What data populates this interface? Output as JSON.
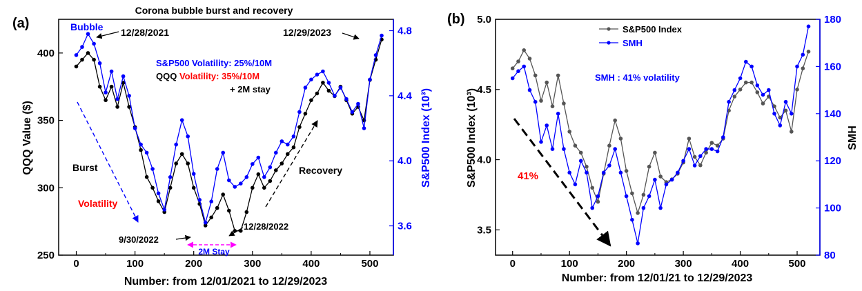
{
  "chart_data": [
    {
      "panel": "(a)",
      "type": "line",
      "title": "Corona bubble burst and recovery",
      "xlabel": "Number: from 12/01/2021 to 12/29/2023",
      "ylabel_left": "QQQ Value ($)",
      "ylabel_right": "S&P500 Index (10³)",
      "xlim": [
        -30,
        540
      ],
      "xticks": [
        "0",
        "100",
        "200",
        "300",
        "400",
        "500"
      ],
      "ylim_left": [
        250,
        425
      ],
      "yticks_left": [
        "250",
        "300",
        "350",
        "400"
      ],
      "ylim_right": [
        3.42,
        4.87
      ],
      "yticks_right": [
        "3.6",
        "4.0",
        "4.4",
        "4.8"
      ],
      "series": [
        {
          "name": "QQQ",
          "axis": "left",
          "color": "#000000",
          "x": [
            0,
            10,
            20,
            30,
            40,
            50,
            60,
            70,
            80,
            90,
            100,
            110,
            120,
            130,
            140,
            150,
            160,
            170,
            180,
            190,
            200,
            210,
            220,
            230,
            240,
            250,
            260,
            270,
            280,
            290,
            300,
            310,
            320,
            330,
            340,
            350,
            360,
            370,
            380,
            390,
            400,
            410,
            420,
            430,
            440,
            450,
            460,
            470,
            480,
            490,
            500,
            510,
            520
          ],
          "y": [
            390,
            395,
            400,
            395,
            375,
            365,
            375,
            360,
            378,
            360,
            345,
            328,
            308,
            300,
            290,
            282,
            300,
            318,
            325,
            318,
            300,
            288,
            272,
            278,
            285,
            295,
            283,
            268,
            268,
            282,
            300,
            310,
            300,
            305,
            313,
            318,
            325,
            330,
            345,
            355,
            365,
            370,
            378,
            372,
            368,
            375,
            365,
            355,
            360,
            350,
            380,
            395,
            410
          ]
        },
        {
          "name": "S&P500",
          "axis": "right",
          "color": "#0000ff",
          "x": [
            0,
            10,
            20,
            30,
            40,
            50,
            60,
            70,
            80,
            90,
            100,
            110,
            120,
            130,
            140,
            150,
            160,
            170,
            180,
            190,
            200,
            210,
            220,
            230,
            240,
            250,
            260,
            270,
            280,
            290,
            300,
            310,
            320,
            330,
            340,
            350,
            360,
            370,
            380,
            390,
            400,
            410,
            420,
            430,
            440,
            450,
            460,
            470,
            480,
            490,
            500,
            510,
            520
          ],
          "y": [
            4.65,
            4.7,
            4.78,
            4.72,
            4.6,
            4.42,
            4.55,
            4.38,
            4.52,
            4.4,
            4.2,
            4.1,
            4.05,
            3.95,
            3.8,
            3.7,
            3.9,
            4.1,
            4.25,
            4.15,
            3.92,
            3.76,
            3.62,
            3.75,
            3.95,
            4.05,
            3.88,
            3.84,
            3.86,
            3.9,
            3.98,
            4.02,
            3.9,
            3.96,
            4.05,
            4.12,
            4.1,
            4.15,
            4.3,
            4.45,
            4.5,
            4.53,
            4.55,
            4.48,
            4.4,
            4.45,
            4.38,
            4.3,
            4.35,
            4.2,
            4.5,
            4.65,
            4.77
          ]
        }
      ],
      "annotations": {
        "bubble": "Bubble",
        "date_peak": "12/28/2021",
        "date_end": "12/29/2023",
        "spx_vol": "S&P500 Volatility: 25%/10M",
        "qqq_vol_a": "QQQ ",
        "qqq_vol_b": "Volatility",
        "qqq_vol_c": ": 35%/10M",
        "stay": "+ 2M stay",
        "burst": "Burst",
        "volatility": "Volatility",
        "recovery": "Recovery",
        "date_low1": "9/30/2022",
        "date_low2": "12/28/2022",
        "stay2": "2M Stay"
      }
    },
    {
      "panel": "(b)",
      "type": "line",
      "xlabel": "Number: from 12/01/21 to 12/29/2023",
      "ylabel_left": "S&P500 Index (10³)",
      "ylabel_right": "SMH",
      "xlim": [
        -30,
        540
      ],
      "xticks": [
        "0",
        "100",
        "200",
        "300",
        "400",
        "500"
      ],
      "ylim_left": [
        3.32,
        5.0
      ],
      "yticks_left": [
        "3.5",
        "4.0",
        "4.5",
        "5.0"
      ],
      "ylim_right": [
        80,
        180
      ],
      "yticks_right": [
        "80",
        "100",
        "120",
        "140",
        "160",
        "180"
      ],
      "legend": [
        "S&P500 Index",
        "SMH"
      ],
      "legend_position": "top-center",
      "series": [
        {
          "name": "S&P500 Index",
          "axis": "left",
          "color": "#555555",
          "x": [
            0,
            10,
            20,
            30,
            40,
            50,
            60,
            70,
            80,
            90,
            100,
            110,
            120,
            130,
            140,
            150,
            160,
            170,
            180,
            190,
            200,
            210,
            220,
            230,
            240,
            250,
            260,
            270,
            280,
            290,
            300,
            310,
            320,
            330,
            340,
            350,
            360,
            370,
            380,
            390,
            400,
            410,
            420,
            430,
            440,
            450,
            460,
            470,
            480,
            490,
            500,
            510,
            520
          ],
          "y": [
            4.65,
            4.7,
            4.78,
            4.72,
            4.6,
            4.42,
            4.55,
            4.38,
            4.6,
            4.4,
            4.2,
            4.1,
            4.05,
            3.95,
            3.8,
            3.7,
            3.9,
            4.1,
            4.28,
            4.15,
            3.92,
            3.76,
            3.62,
            3.75,
            3.95,
            4.05,
            3.88,
            3.84,
            3.86,
            3.9,
            3.98,
            4.15,
            4.02,
            3.96,
            4.05,
            4.12,
            4.1,
            4.15,
            4.35,
            4.45,
            4.5,
            4.55,
            4.55,
            4.48,
            4.4,
            4.45,
            4.38,
            4.3,
            4.35,
            4.2,
            4.5,
            4.65,
            4.77
          ]
        },
        {
          "name": "SMH",
          "axis": "right",
          "color": "#0000ff",
          "x": [
            0,
            10,
            20,
            30,
            40,
            50,
            60,
            70,
            80,
            90,
            100,
            110,
            120,
            130,
            140,
            150,
            160,
            170,
            180,
            190,
            200,
            210,
            220,
            230,
            240,
            250,
            260,
            270,
            280,
            290,
            300,
            310,
            320,
            330,
            340,
            350,
            360,
            370,
            380,
            390,
            400,
            410,
            420,
            430,
            440,
            450,
            460,
            470,
            480,
            490,
            500,
            510,
            520
          ],
          "y": [
            155,
            158,
            160,
            150,
            145,
            128,
            135,
            125,
            140,
            125,
            115,
            110,
            120,
            115,
            100,
            105,
            115,
            118,
            125,
            115,
            105,
            95,
            85,
            100,
            105,
            112,
            100,
            110,
            112,
            115,
            120,
            125,
            118,
            122,
            125,
            125,
            124,
            130,
            145,
            150,
            155,
            162,
            160,
            152,
            148,
            150,
            140,
            135,
            145,
            140,
            160,
            165,
            177
          ]
        }
      ],
      "annotations": {
        "smh_vol": "SMH : 41% volatility",
        "pct": "41%"
      }
    }
  ],
  "panel_labels": {
    "a": "(a)",
    "b": "(b)"
  }
}
